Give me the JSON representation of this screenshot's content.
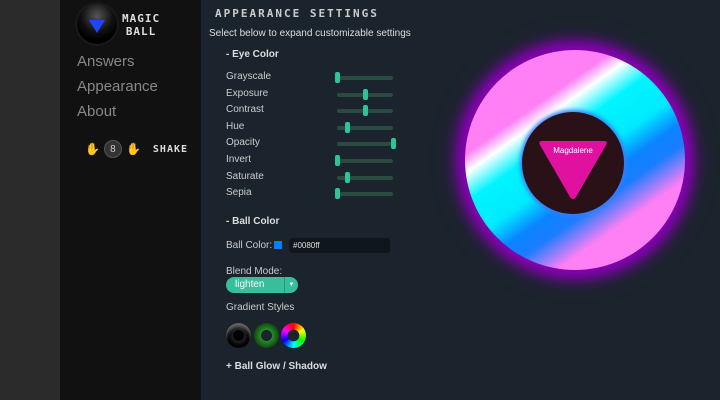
{
  "app": {
    "logo_text_1": "MAGIC",
    "logo_text_2": "BALL"
  },
  "nav": [
    {
      "label": "Answers"
    },
    {
      "label": "Appearance"
    },
    {
      "label": "About"
    }
  ],
  "shake": {
    "label": "SHAKE",
    "ball_glyph": "8"
  },
  "main": {
    "title": "APPEARANCE SETTINGS",
    "subtitle": "Select below to expand customizable settings",
    "eye_color": {
      "heading": "- Eye Color",
      "sliders": [
        {
          "label": "Grayscale",
          "value": 0
        },
        {
          "label": "Exposure",
          "value": 0.5
        },
        {
          "label": "Contrast",
          "value": 0.5
        },
        {
          "label": "Hue",
          "value": 0.17
        },
        {
          "label": "Opacity",
          "value": 1
        },
        {
          "label": "Invert",
          "value": 0
        },
        {
          "label": "Saturate",
          "value": 0.17
        },
        {
          "label": "Sepia",
          "value": 0
        }
      ]
    },
    "ball_color": {
      "heading": "- Ball Color",
      "color_label": "Ball Color:",
      "color_value": "#0080ff",
      "blend_label": "Blend Mode:",
      "blend_value": "lighten",
      "gradient_label": "Gradient Styles"
    },
    "glow": {
      "heading": "+ Ball Glow / Shadow"
    }
  },
  "ball": {
    "answer": "Magdalene",
    "eye_triangle_color": "#e0119f",
    "glow_color": "#8a00b8"
  },
  "colors": {
    "accent": "#36bf9a",
    "background": "#1b242c",
    "sidebar": "#111111"
  }
}
